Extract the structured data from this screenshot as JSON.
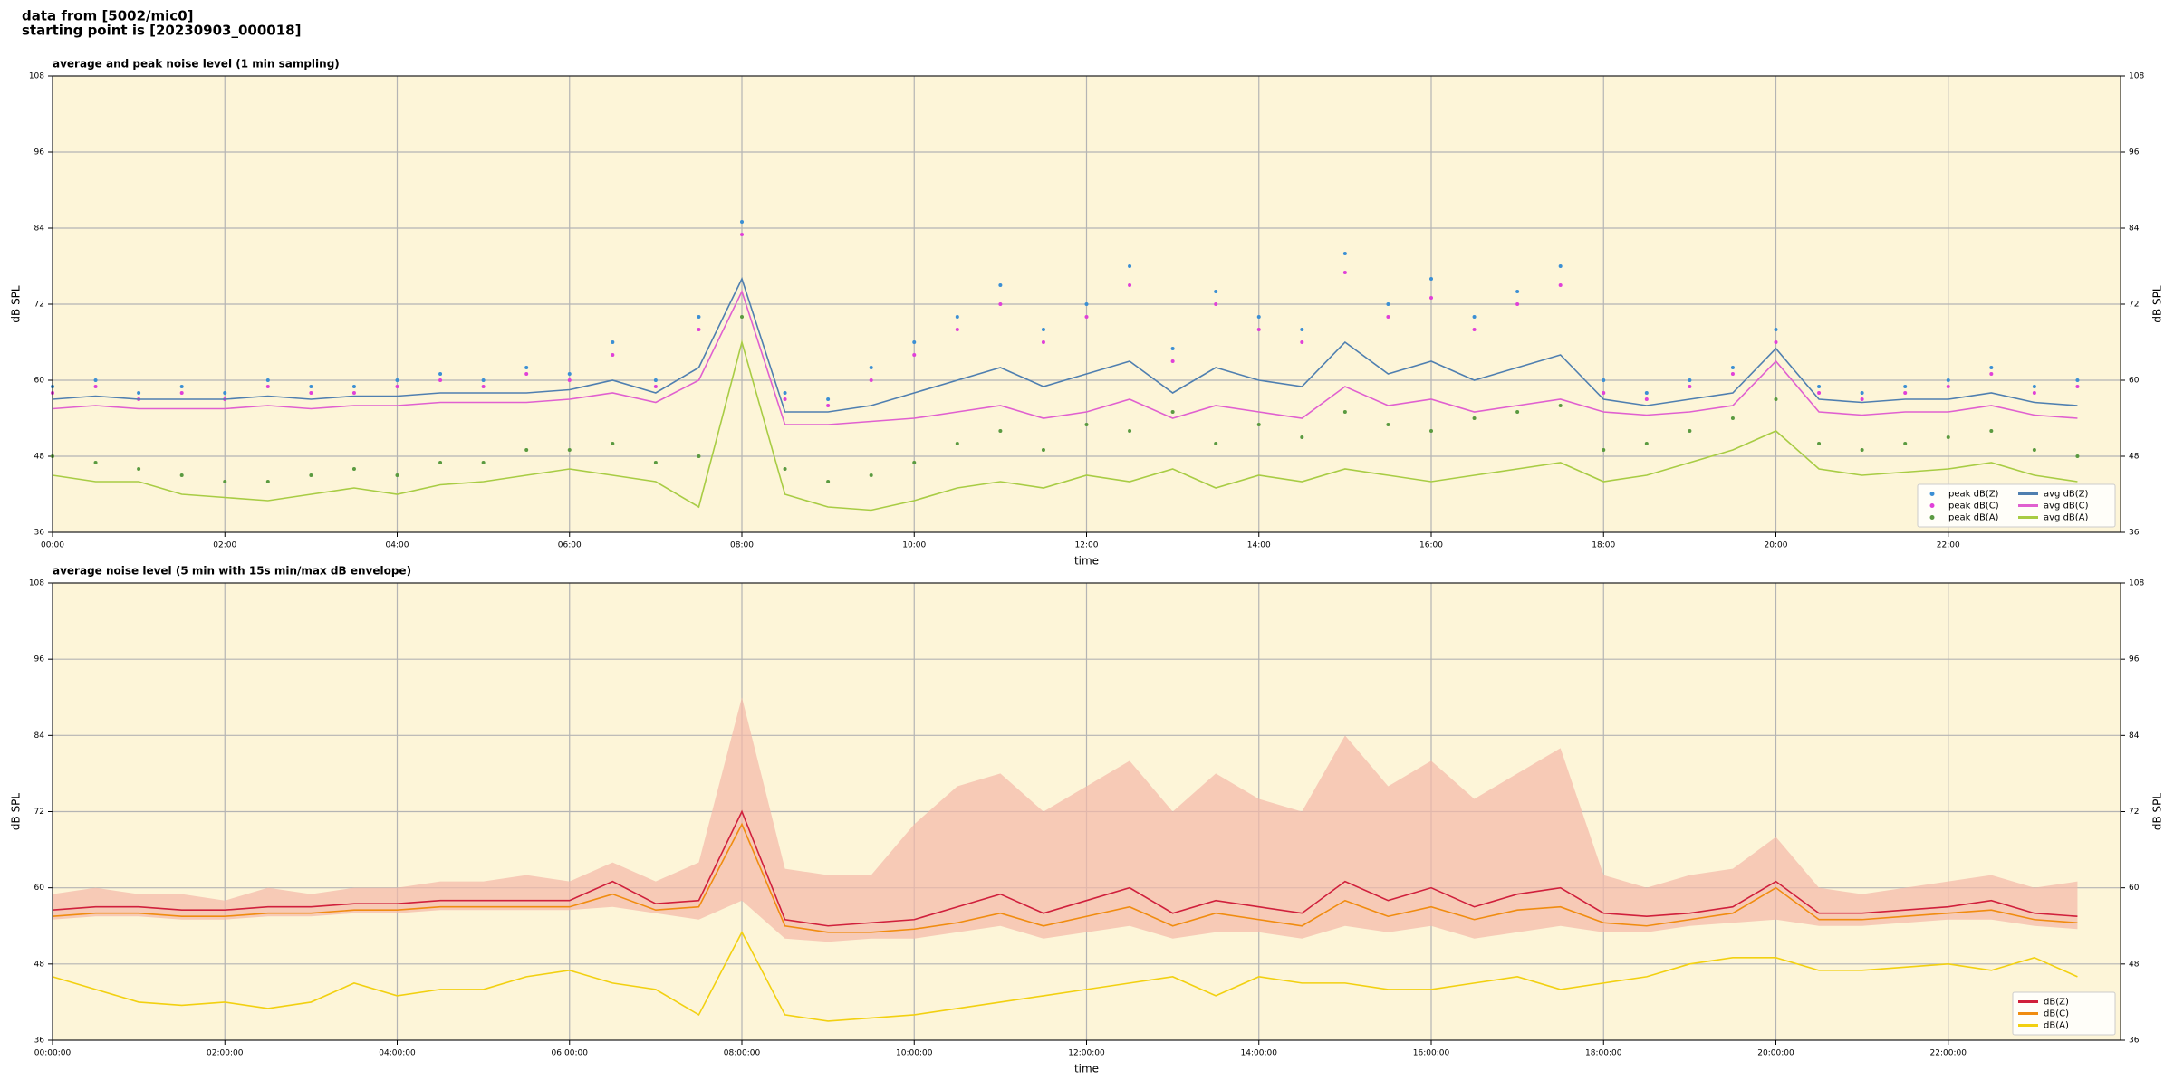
{
  "header": {
    "line1": "data from [5002/mic0]",
    "line2": "starting point is [20230903_000018]"
  },
  "chart_data": [
    {
      "type": "line",
      "title": "average and peak noise level (1 min sampling)",
      "xlabel": "time",
      "ylabel": "dB SPL",
      "x": [
        "00:00",
        "00:30",
        "01:00",
        "01:30",
        "02:00",
        "02:30",
        "03:00",
        "03:30",
        "04:00",
        "04:30",
        "05:00",
        "05:30",
        "06:00",
        "06:30",
        "07:00",
        "07:30",
        "08:00",
        "08:30",
        "09:00",
        "09:30",
        "10:00",
        "10:30",
        "11:00",
        "11:30",
        "12:00",
        "12:30",
        "13:00",
        "13:30",
        "14:00",
        "14:30",
        "15:00",
        "15:30",
        "16:00",
        "16:30",
        "17:00",
        "17:30",
        "18:00",
        "18:30",
        "19:00",
        "19:30",
        "20:00",
        "20:30",
        "21:00",
        "21:30",
        "22:00",
        "22:30",
        "23:00",
        "23:30"
      ],
      "xlim": [
        "00:00",
        "24:00"
      ],
      "xticks": [
        "00:00",
        "02:00",
        "04:00",
        "06:00",
        "08:00",
        "10:00",
        "12:00",
        "14:00",
        "16:00",
        "18:00",
        "20:00",
        "22:00"
      ],
      "ylim": [
        36,
        108
      ],
      "yticks": [
        36,
        48,
        60,
        72,
        84,
        96,
        108
      ],
      "grid": true,
      "legend": "lower right",
      "legend_columns": 2,
      "series": [
        {
          "name": "peak dB(Z)",
          "type": "scatter",
          "color": "#3b8fd4",
          "values": [
            59,
            60,
            58,
            59,
            58,
            60,
            59,
            59,
            60,
            61,
            60,
            62,
            61,
            66,
            60,
            70,
            85,
            58,
            57,
            62,
            66,
            70,
            75,
            68,
            72,
            78,
            65,
            74,
            70,
            68,
            80,
            72,
            76,
            70,
            74,
            78,
            60,
            58,
            60,
            62,
            68,
            59,
            58,
            59,
            60,
            62,
            59,
            60
          ]
        },
        {
          "name": "peak dB(C)",
          "type": "scatter",
          "color": "#e040d8",
          "values": [
            58,
            59,
            57,
            58,
            57,
            59,
            58,
            58,
            59,
            60,
            59,
            61,
            60,
            64,
            59,
            68,
            83,
            57,
            56,
            60,
            64,
            68,
            72,
            66,
            70,
            75,
            63,
            72,
            68,
            66,
            77,
            70,
            73,
            68,
            72,
            75,
            58,
            57,
            59,
            61,
            66,
            58,
            57,
            58,
            59,
            61,
            58,
            59
          ]
        },
        {
          "name": "peak dB(A)",
          "type": "scatter",
          "color": "#5a9a40",
          "values": [
            48,
            47,
            46,
            45,
            44,
            44,
            45,
            46,
            45,
            47,
            47,
            49,
            49,
            50,
            47,
            48,
            70,
            46,
            44,
            45,
            47,
            50,
            52,
            49,
            53,
            52,
            55,
            50,
            53,
            51,
            55,
            53,
            52,
            54,
            55,
            56,
            49,
            50,
            52,
            54,
            57,
            50,
            49,
            50,
            51,
            52,
            49,
            48
          ]
        },
        {
          "name": "avg dB(Z)",
          "type": "line",
          "color": "#4f7fb0",
          "values": [
            57,
            57.5,
            57,
            57,
            57,
            57.5,
            57,
            57.5,
            57.5,
            58,
            58,
            58,
            58.5,
            60,
            58,
            62,
            76,
            55,
            55,
            56,
            58,
            60,
            62,
            59,
            61,
            63,
            58,
            62,
            60,
            59,
            66,
            61,
            63,
            60,
            62,
            64,
            57,
            56,
            57,
            58,
            65,
            57,
            56.5,
            57,
            57,
            58,
            56.5,
            56
          ]
        },
        {
          "name": "avg dB(C)",
          "type": "line",
          "color": "#e060d0",
          "values": [
            55.5,
            56,
            55.5,
            55.5,
            55.5,
            56,
            55.5,
            56,
            56,
            56.5,
            56.5,
            56.5,
            57,
            58,
            56.5,
            60,
            74,
            53,
            53,
            53.5,
            54,
            55,
            56,
            54,
            55,
            57,
            54,
            56,
            55,
            54,
            59,
            56,
            57,
            55,
            56,
            57,
            55,
            54.5,
            55,
            56,
            63,
            55,
            54.5,
            55,
            55,
            56,
            54.5,
            54
          ]
        },
        {
          "name": "avg dB(A)",
          "type": "line",
          "color": "#a8cc44",
          "values": [
            45,
            44,
            44,
            42,
            41.5,
            41,
            42,
            43,
            42,
            43.5,
            44,
            45,
            46,
            45,
            44,
            40,
            66,
            42,
            40,
            39.5,
            41,
            43,
            44,
            43,
            45,
            44,
            46,
            43,
            45,
            44,
            46,
            45,
            44,
            45,
            46,
            47,
            44,
            45,
            47,
            49,
            52,
            46,
            45,
            45.5,
            46,
            47,
            45,
            44
          ]
        }
      ]
    },
    {
      "type": "line",
      "title": "average noise level (5 min with 15s min/max dB envelope)",
      "xlabel": "time",
      "ylabel": "dB SPL",
      "x": [
        "00:00",
        "00:30",
        "01:00",
        "01:30",
        "02:00",
        "02:30",
        "03:00",
        "03:30",
        "04:00",
        "04:30",
        "05:00",
        "05:30",
        "06:00",
        "06:30",
        "07:00",
        "07:30",
        "08:00",
        "08:30",
        "09:00",
        "09:30",
        "10:00",
        "10:30",
        "11:00",
        "11:30",
        "12:00",
        "12:30",
        "13:00",
        "13:30",
        "14:00",
        "14:30",
        "15:00",
        "15:30",
        "16:00",
        "16:30",
        "17:00",
        "17:30",
        "18:00",
        "18:30",
        "19:00",
        "19:30",
        "20:00",
        "20:30",
        "21:00",
        "21:30",
        "22:00",
        "22:30",
        "23:00",
        "23:30"
      ],
      "xlim": [
        "00:00:00",
        "24:00:00"
      ],
      "xticks": [
        "00:00:00",
        "02:00:00",
        "04:00:00",
        "06:00:00",
        "08:00:00",
        "10:00:00",
        "12:00:00",
        "14:00:00",
        "16:00:00",
        "18:00:00",
        "20:00:00",
        "22:00:00"
      ],
      "ylim": [
        36,
        108
      ],
      "yticks": [
        36,
        48,
        60,
        72,
        84,
        96,
        108
      ],
      "grid": true,
      "legend": "lower right",
      "legend_columns": 1,
      "envelope": {
        "color": "#f4b8a8",
        "max": [
          59,
          60,
          59,
          59,
          58,
          60,
          59,
          60,
          60,
          61,
          61,
          62,
          61,
          64,
          61,
          64,
          90,
          63,
          62,
          62,
          70,
          76,
          78,
          72,
          76,
          80,
          72,
          78,
          74,
          72,
          84,
          76,
          80,
          74,
          78,
          82,
          62,
          60,
          62,
          63,
          68,
          60,
          59,
          60,
          61,
          62,
          60,
          61
        ],
        "min": [
          55,
          55.5,
          55.5,
          55,
          55,
          55.5,
          55.5,
          56,
          56,
          56.5,
          56.5,
          56.5,
          56.5,
          57,
          56,
          55,
          58,
          52,
          51.5,
          52,
          52,
          53,
          54,
          52,
          53,
          54,
          52,
          53,
          53,
          52,
          54,
          53,
          54,
          52,
          53,
          54,
          53,
          53,
          54,
          54.5,
          55,
          54,
          54,
          54.5,
          55,
          55,
          54,
          53.5
        ]
      },
      "series": [
        {
          "name": "dB(Z)",
          "type": "line",
          "color": "#d0203c",
          "values": [
            56.5,
            57,
            57,
            56.5,
            56.5,
            57,
            57,
            57.5,
            57.5,
            58,
            58,
            58,
            58,
            61,
            57.5,
            58,
            72,
            55,
            54,
            54.5,
            55,
            57,
            59,
            56,
            58,
            60,
            56,
            58,
            57,
            56,
            61,
            58,
            60,
            57,
            59,
            60,
            56,
            55.5,
            56,
            57,
            61,
            56,
            56,
            56.5,
            57,
            58,
            56,
            55.5
          ]
        },
        {
          "name": "dB(C)",
          "type": "line",
          "color": "#f08c10",
          "values": [
            55.5,
            56,
            56,
            55.5,
            55.5,
            56,
            56,
            56.5,
            56.5,
            57,
            57,
            57,
            57,
            59,
            56.5,
            57,
            70,
            54,
            53,
            53,
            53.5,
            54.5,
            56,
            54,
            55.5,
            57,
            54,
            56,
            55,
            54,
            58,
            55.5,
            57,
            55,
            56.5,
            57,
            54.5,
            54,
            55,
            56,
            60,
            55,
            55,
            55.5,
            56,
            56.5,
            55,
            54.5
          ]
        },
        {
          "name": "dB(A)",
          "type": "line",
          "color": "#f2d010",
          "values": [
            46,
            44,
            42,
            41.5,
            42,
            41,
            42,
            45,
            43,
            44,
            44,
            46,
            47,
            45,
            44,
            40,
            53,
            40,
            39,
            39.5,
            40,
            41,
            42,
            43,
            44,
            45,
            46,
            43,
            46,
            45,
            45,
            44,
            44,
            45,
            46,
            44,
            45,
            46,
            48,
            49,
            49,
            47,
            47,
            47.5,
            48,
            47,
            49,
            46
          ]
        }
      ]
    }
  ]
}
